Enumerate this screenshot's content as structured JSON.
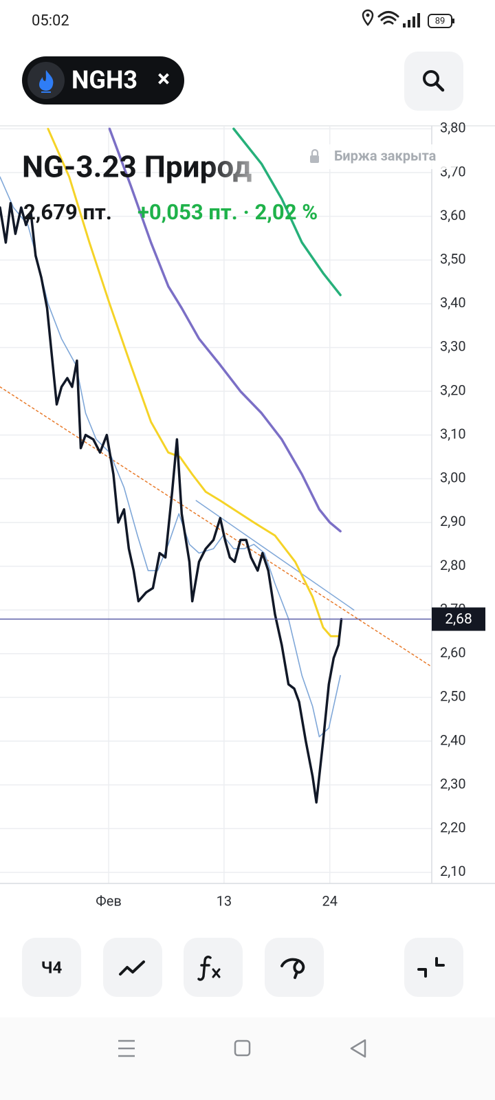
{
  "status_bar": {
    "time": "05:02",
    "battery": "89"
  },
  "header": {
    "ticker": "NGH3",
    "close": "×"
  },
  "instrument": {
    "title": "NG-3.23 Природ",
    "status": "Биржа закрыта",
    "price": "2,679 пт.",
    "change": "+0,053 пт. · 2,02 %"
  },
  "chart_data": {
    "type": "line",
    "xlim": [
      -10.3,
      34.6
    ],
    "xticks": [
      {
        "value": 1,
        "label": "Фев"
      },
      {
        "value": 13,
        "label": "13"
      },
      {
        "value": 24,
        "label": "24"
      }
    ],
    "ylim": [
      2.07,
      3.81
    ],
    "yticks": [
      {
        "value": 2.1,
        "label": "2,10"
      },
      {
        "value": 2.2,
        "label": "2,20"
      },
      {
        "value": 2.3,
        "label": "2,30"
      },
      {
        "value": 2.4,
        "label": "2,40"
      },
      {
        "value": 2.5,
        "label": "2,50"
      },
      {
        "value": 2.6,
        "label": "2,60"
      },
      {
        "value": 2.7,
        "label": "2,70"
      },
      {
        "value": 2.8,
        "label": "2,80"
      },
      {
        "value": 2.9,
        "label": "2,90"
      },
      {
        "value": 3.0,
        "label": "3,00"
      },
      {
        "value": 3.1,
        "label": "3,10"
      },
      {
        "value": 3.2,
        "label": "3,20"
      },
      {
        "value": 3.3,
        "label": "3,30"
      },
      {
        "value": 3.4,
        "label": "3,40"
      },
      {
        "value": 3.5,
        "label": "3,50"
      },
      {
        "value": 3.6,
        "label": "3,60"
      },
      {
        "value": 3.7,
        "label": "3,70"
      },
      {
        "value": 3.8,
        "label": "3,80"
      }
    ],
    "grid": true,
    "current_price": {
      "value": 2.679,
      "label": "2,68",
      "color": "#5b5fa8"
    },
    "series": [
      {
        "color": "#e87a2a",
        "dashed": true,
        "width": 1.5,
        "x": [
          -10.3,
          34.6
        ],
        "values": [
          3.21,
          2.57
        ]
      },
      {
        "color": "#7fa7d8",
        "dashed": false,
        "width": 1.5,
        "x": [
          10.1,
          26.5
        ],
        "values": [
          2.95,
          2.7
        ]
      },
      {
        "color": "#26b07a",
        "dashed": false,
        "width": 3.5,
        "x": [
          14.0,
          16.9,
          19.0,
          21.1,
          23.3,
          25.1
        ],
        "values": [
          3.8,
          3.72,
          3.64,
          3.54,
          3.47,
          3.42
        ]
      },
      {
        "color": "#7b6fc6",
        "dashed": false,
        "width": 3.5,
        "x": [
          1.1,
          3.3,
          5.4,
          7.2,
          8.6,
          10.4,
          12.6,
          14.7,
          16.9,
          19.0,
          21.1,
          22.9,
          24.0,
          25.1
        ],
        "values": [
          3.8,
          3.67,
          3.54,
          3.44,
          3.39,
          3.32,
          3.26,
          3.2,
          3.15,
          3.09,
          3.01,
          2.93,
          2.9,
          2.88
        ]
      },
      {
        "color": "#f5d327",
        "dashed": false,
        "width": 3,
        "x": [
          -5.3,
          -3.1,
          -1.0,
          1.1,
          3.3,
          5.4,
          7.2,
          8.4,
          9.7,
          11.1,
          12.6,
          14.0,
          16.1,
          18.3,
          20.4,
          22.2,
          23.3,
          24.1,
          24.9
        ],
        "values": [
          3.8,
          3.69,
          3.54,
          3.4,
          3.26,
          3.13,
          3.06,
          3.05,
          3.01,
          2.97,
          2.95,
          2.93,
          2.9,
          2.87,
          2.81,
          2.73,
          2.66,
          2.64,
          2.64
        ]
      },
      {
        "color": "#7fa7d8",
        "dashed": false,
        "width": 1.6,
        "x": [
          -10.3,
          -8.9,
          -7.4,
          -6.4,
          -5.3,
          -3.9,
          -2.4,
          -1.4,
          -0.3,
          1.1,
          2.6,
          4.0,
          5.1,
          6.1,
          7.2,
          8.3,
          9.4,
          10.4,
          11.9,
          12.9,
          14.0,
          15.1,
          16.1,
          17.2,
          18.3,
          19.7,
          21.1,
          22.2,
          22.9,
          23.9,
          25.1
        ],
        "values": [
          3.69,
          3.62,
          3.58,
          3.5,
          3.4,
          3.32,
          3.26,
          3.15,
          3.09,
          3.06,
          2.98,
          2.87,
          2.79,
          2.79,
          2.85,
          2.92,
          2.85,
          2.83,
          2.84,
          2.87,
          2.84,
          2.84,
          2.85,
          2.83,
          2.76,
          2.68,
          2.55,
          2.48,
          2.41,
          2.43,
          2.55
        ]
      },
      {
        "color": "#111827",
        "dashed": false,
        "width": 3.5,
        "x": [
          -10.3,
          -9.7,
          -9.2,
          -8.7,
          -8.1,
          -7.6,
          -7.1,
          -6.6,
          -6.0,
          -5.4,
          -4.9,
          -4.4,
          -3.9,
          -3.3,
          -2.8,
          -2.3,
          -1.9,
          -1.4,
          -0.6,
          0.1,
          0.8,
          1.5,
          2.0,
          2.6,
          3.1,
          3.6,
          4.1,
          4.9,
          5.6,
          6.3,
          6.9,
          7.6,
          8.1,
          8.6,
          9.4,
          9.7,
          10.4,
          11.1,
          11.9,
          12.6,
          13.1,
          13.6,
          14.1,
          14.7,
          15.3,
          15.8,
          16.5,
          17.0,
          17.6,
          18.3,
          19.0,
          19.7,
          20.3,
          20.8,
          21.5,
          22.2,
          22.6,
          23.3,
          23.9,
          24.4,
          24.9,
          25.2
        ],
        "values": [
          3.62,
          3.54,
          3.63,
          3.56,
          3.62,
          3.58,
          3.61,
          3.51,
          3.46,
          3.39,
          3.28,
          3.17,
          3.21,
          3.23,
          3.21,
          3.27,
          3.07,
          3.1,
          3.09,
          3.06,
          3.1,
          3.01,
          2.9,
          2.93,
          2.84,
          2.79,
          2.72,
          2.74,
          2.75,
          2.83,
          2.82,
          2.97,
          3.09,
          2.92,
          2.81,
          2.72,
          2.81,
          2.84,
          2.86,
          2.91,
          2.86,
          2.82,
          2.81,
          2.86,
          2.86,
          2.82,
          2.79,
          2.83,
          2.79,
          2.69,
          2.62,
          2.53,
          2.52,
          2.49,
          2.4,
          2.32,
          2.26,
          2.4,
          2.53,
          2.59,
          2.62,
          2.679
        ]
      }
    ]
  },
  "toolbar": {
    "interval": "Ч4"
  }
}
